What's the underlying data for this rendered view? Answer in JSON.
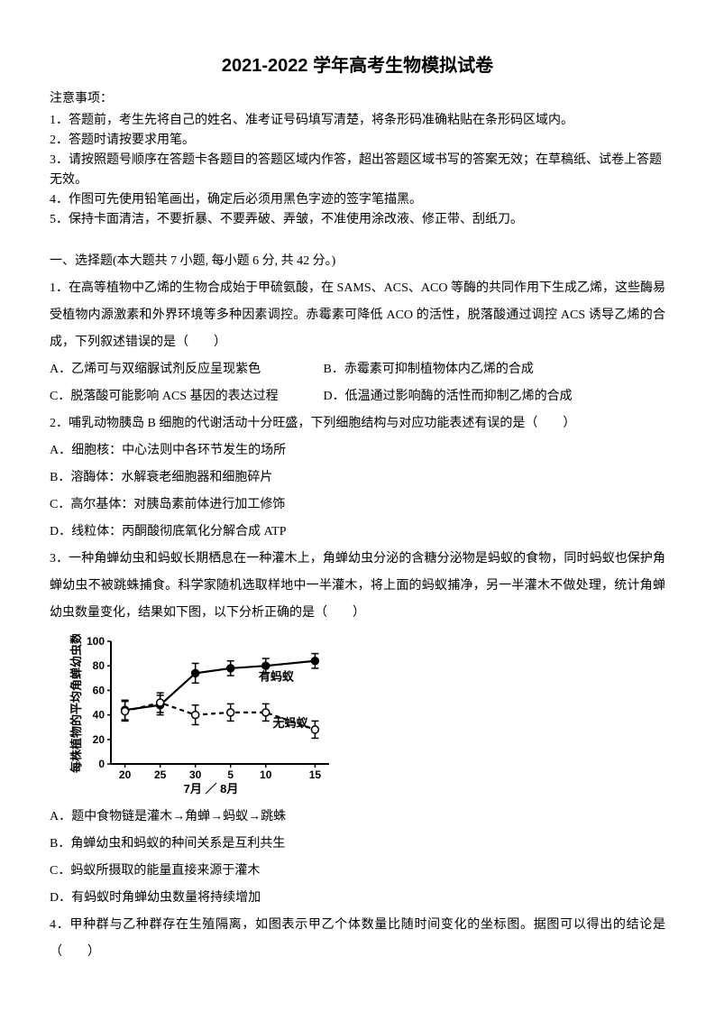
{
  "title": "2021-2022 学年高考生物模拟试卷",
  "instructions": {
    "heading": "注意事项：",
    "items": [
      "1．答题前，考生先将自己的姓名、准考证号码填写清楚，将条形码准确粘贴在条形码区域内。",
      "2．答题时请按要求用笔。",
      "3．请按照题号顺序在答题卡各题目的答题区域内作答，超出答题区域书写的答案无效；在草稿纸、试卷上答题无效。",
      "4．作图可先使用铅笔画出，确定后必须用黑色字迹的签字笔描黑。",
      "5．保持卡面清洁，不要折暴、不要弄破、弄皱，不准使用涂改液、修正带、刮纸刀。"
    ]
  },
  "section1": "一、选择题(本大题共 7 小题, 每小题 6 分, 共 42 分。)",
  "q1": {
    "stem": "1．在高等植物中乙烯的生物合成始于甲硫氨酸，在 SAMS、ACS、ACO 等酶的共同作用下生成乙烯，这些酶易受植物内源激素和外界环境等多种因素调控。赤霉素可降低 ACO 的活性，脱落酸通过调控 ACS 诱导乙烯的合成，下列叙述错误的是（　　）",
    "A": "A．乙烯可与双缩脲试剂反应呈现紫色",
    "B": "B．赤霉素可抑制植物体内乙烯的合成",
    "C": "C．脱落酸可能影响 ACS 基因的表达过程",
    "D": "D．低温通过影响酶的活性而抑制乙烯的合成"
  },
  "q2": {
    "stem": "2．哺乳动物胰岛 B 细胞的代谢活动十分旺盛，下列细胞结构与对应功能表述有误的是（　　）",
    "A": "A．细胞核：中心法则中各环节发生的场所",
    "B": "B．溶酶体：水解衰老细胞器和细胞碎片",
    "C": "C．高尔基体：对胰岛素前体进行加工修饰",
    "D": "D．线粒体：丙酮酸彻底氧化分解合成 ATP"
  },
  "q3": {
    "stem": "3．一种角蝉幼虫和蚂蚁长期栖息在一种灌木上，角蝉幼虫分泌的含糖分泌物是蚂蚁的食物，同时蚂蚁也保护角蝉幼虫不被跳蛛捕食。科学家随机选取样地中一半灌木，将上面的蚂蚁捕净，另一半灌木不做处理，统计角蝉幼虫数量变化，结果如下图，以下分析正确的是（　　）",
    "A": "A．题中食物链是灌木→角蝉→蚂蚁→跳蛛",
    "B": "B．角蝉幼虫和蚂蚁的种间关系是互利共生",
    "C": "C．蚂蚁所摄取的能量直接来源于灌木",
    "D": "D．有蚂蚁时角蝉幼虫数量将持续增加"
  },
  "q4": {
    "stem": "4．甲种群与乙种群存在生殖隔离，如图表示甲乙个体数量比随时间变化的坐标图。据图可以得出的结论是（　　）"
  },
  "chart": {
    "type": "line",
    "ylabel": "每株植物的平均角蝉幼虫数",
    "xlabel": "7月 ／ 8月",
    "xticks": [
      "20",
      "25",
      "30",
      "5",
      "10",
      "15"
    ],
    "yticks": [
      0,
      20,
      40,
      60,
      80,
      100
    ],
    "legend": {
      "s1": "有蚂蚁",
      "s2": "无蚂蚁"
    },
    "series1": {
      "label": "有蚂蚁",
      "color": "#000000",
      "marker": "circle-filled",
      "x": [
        20,
        25,
        30,
        35,
        40,
        47
      ],
      "y": [
        44,
        48,
        74,
        78,
        80,
        84
      ],
      "err": [
        8,
        8,
        8,
        6,
        6,
        6
      ]
    },
    "series2": {
      "label": "无蚂蚁",
      "color": "#000000",
      "dash": "5,4",
      "marker": "circle-open",
      "x": [
        20,
        25,
        30,
        35,
        40,
        47
      ],
      "y": [
        43,
        50,
        40,
        42,
        42,
        28
      ],
      "err": [
        8,
        8,
        8,
        7,
        7,
        7
      ]
    },
    "axis_color": "#000000",
    "tick_fontsize": 12,
    "label_fontsize": 13,
    "line_width": 2.2,
    "marker_size": 4
  }
}
